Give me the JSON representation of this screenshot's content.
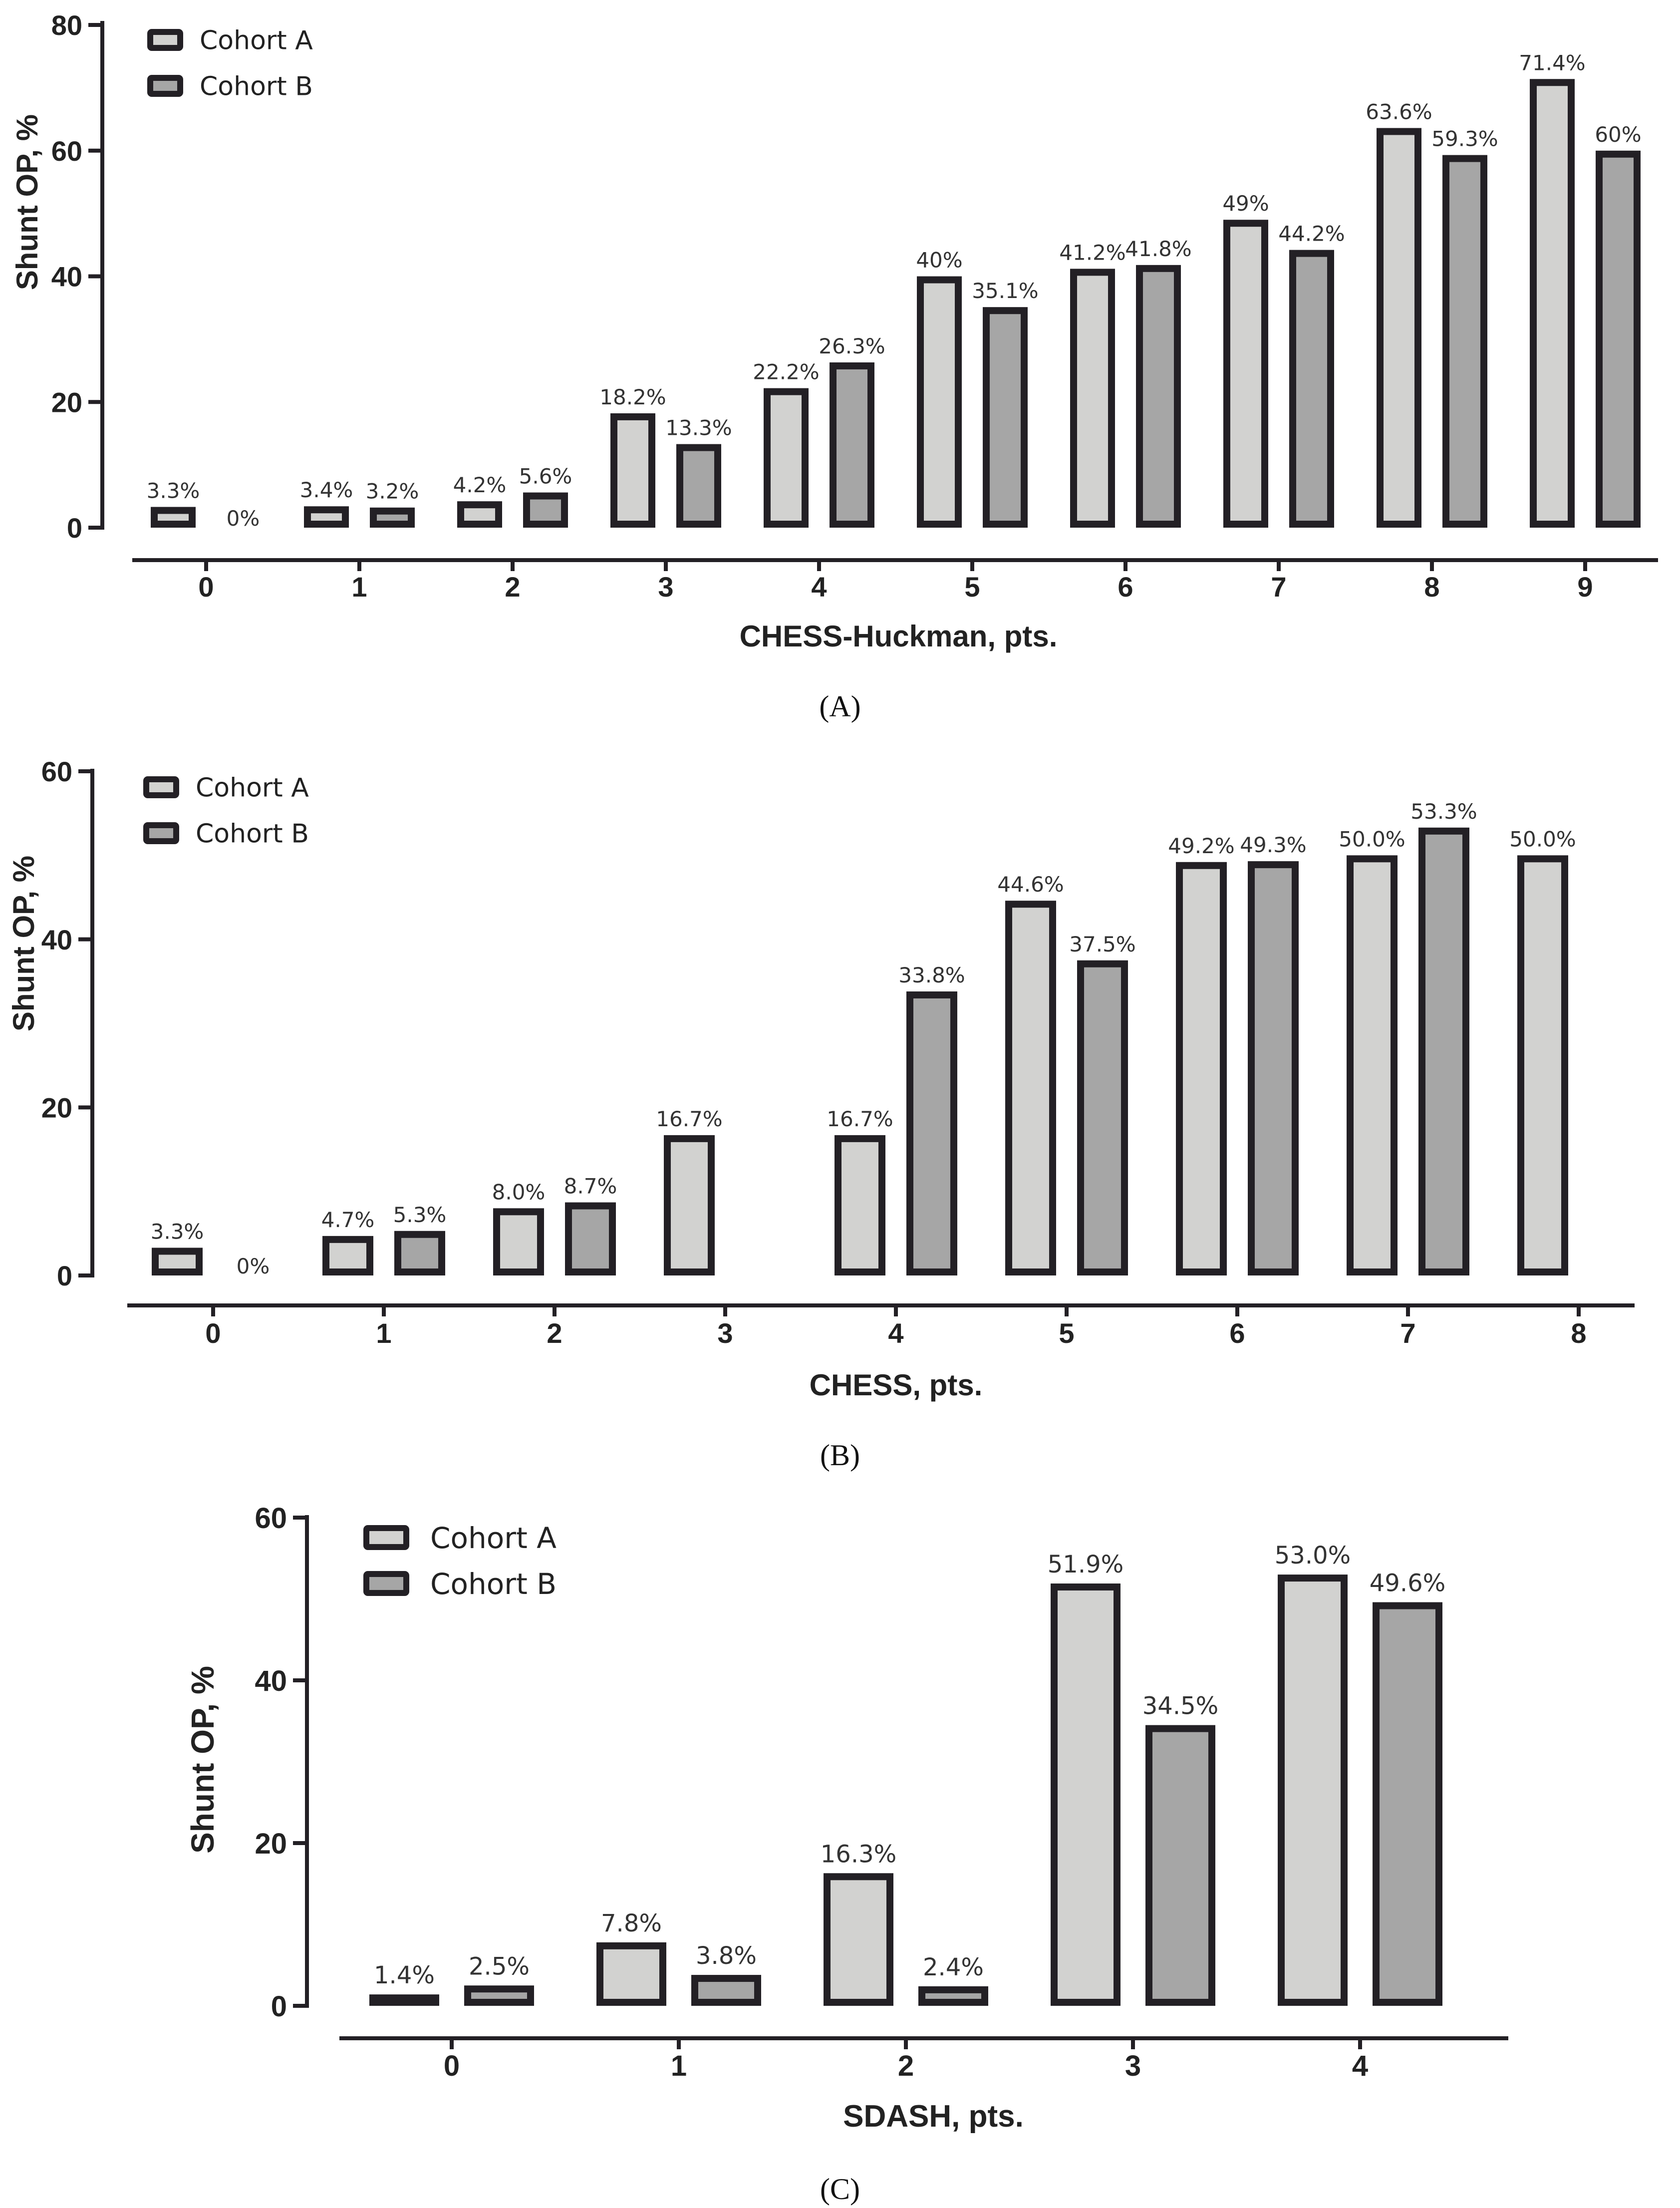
{
  "chart_data": [
    {
      "type": "bar",
      "panel_label": "(A)",
      "xlabel": "CHESS-Huckman, pts.",
      "ylabel": "Shunt OP, %",
      "ylim": [
        0,
        80
      ],
      "yticks": [
        0,
        20,
        40,
        60,
        80
      ],
      "categories": [
        "0",
        "1",
        "2",
        "3",
        "4",
        "5",
        "6",
        "7",
        "8",
        "9"
      ],
      "legend": "top-left",
      "colors": {
        "Cohort A": "#d2d2d0",
        "Cohort B": "#a6a6a6",
        "outline": "#232025"
      },
      "series": [
        {
          "name": "Cohort A",
          "values": [
            3.3,
            3.4,
            4.2,
            18.2,
            22.2,
            40,
            41.2,
            49,
            63.6,
            71.4
          ],
          "labels": [
            "3.3%",
            "3.4%",
            "4.2%",
            "18.2%",
            "22.2%",
            "40%",
            "41.2%",
            "49%",
            "63.6%",
            "71.4%"
          ]
        },
        {
          "name": "Cohort B",
          "values": [
            0,
            3.2,
            5.6,
            13.3,
            26.3,
            35.1,
            41.8,
            44.2,
            59.3,
            60
          ],
          "labels": [
            "0%",
            "3.2%",
            "5.6%",
            "13.3%",
            "26.3%",
            "35.1%",
            "41.8%",
            "44.2%",
            "59.3%",
            "60%"
          ]
        }
      ]
    },
    {
      "type": "bar",
      "panel_label": "(B)",
      "xlabel": "CHESS, pts.",
      "ylabel": "Shunt OP, %",
      "ylim": [
        0,
        60
      ],
      "yticks": [
        0,
        20,
        40,
        60
      ],
      "categories": [
        "0",
        "1",
        "2",
        "3",
        "4",
        "5",
        "6",
        "7",
        "8"
      ],
      "legend": "top-left",
      "colors": {
        "Cohort A": "#d2d2d0",
        "Cohort B": "#a6a6a6",
        "outline": "#232025"
      },
      "series": [
        {
          "name": "Cohort A",
          "values": [
            3.3,
            4.7,
            8.0,
            16.7,
            16.7,
            44.6,
            49.2,
            50.0,
            50.0
          ],
          "labels": [
            "3.3%",
            "4.7%",
            "8.0%",
            "16.7%",
            "16.7%",
            "44.6%",
            "49.2%",
            "50.0%",
            "50.0%"
          ]
        },
        {
          "name": "Cohort B",
          "values": [
            0,
            5.3,
            8.7,
            null,
            33.8,
            37.5,
            49.3,
            53.3,
            null
          ],
          "labels": [
            "0%",
            "5.3%",
            "8.7%",
            null,
            "33.8%",
            "37.5%",
            "49.3%",
            "53.3%",
            null
          ]
        }
      ]
    },
    {
      "type": "bar",
      "panel_label": "(C)",
      "xlabel": "SDASH, pts.",
      "ylabel": "Shunt OP, %",
      "ylim": [
        0,
        60
      ],
      "yticks": [
        0,
        20,
        40,
        60
      ],
      "categories": [
        "0",
        "1",
        "2",
        "3",
        "4"
      ],
      "legend": "top-left",
      "colors": {
        "Cohort A": "#d2d2d0",
        "Cohort B": "#a6a6a6",
        "outline": "#232025"
      },
      "series": [
        {
          "name": "Cohort A",
          "values": [
            1.4,
            7.8,
            16.3,
            51.9,
            53.0
          ],
          "labels": [
            "1.4%",
            "7.8%",
            "16.3%",
            "51.9%",
            "53.0%"
          ]
        },
        {
          "name": "Cohort B",
          "values": [
            2.5,
            3.8,
            2.4,
            34.5,
            49.6
          ],
          "labels": [
            "2.5%",
            "3.8%",
            "2.4%",
            "34.5%",
            "49.6%"
          ]
        }
      ]
    }
  ]
}
